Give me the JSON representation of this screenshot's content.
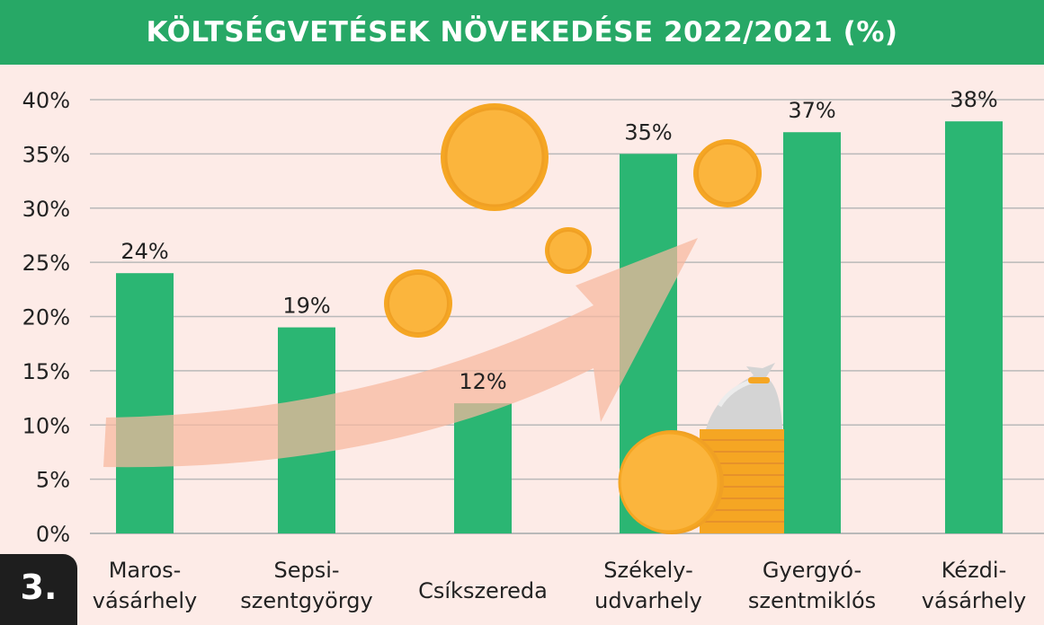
{
  "header": {
    "title": "KÖLTSÉGVETÉSEK NÖVEKEDÉSE 2022/2021 (%)"
  },
  "badge": {
    "label": "3."
  },
  "colors": {
    "background": "#fdebe7",
    "header": "#27a866",
    "bar": "#2bb673",
    "grid": "#b9b9b9",
    "coin": "#fbb53d",
    "arrow": "#f7b79e"
  },
  "decorations": [
    "coin-icon",
    "money-bag-icon",
    "growth-arrow-icon"
  ],
  "chart_data": {
    "type": "bar",
    "title": "KÖLTSÉGVETÉSEK NÖVEKEDÉSE 2022/2021 (%)",
    "categories": [
      [
        "Maros-",
        "vásárhely"
      ],
      [
        "Sepsi-",
        "szentgyörgy"
      ],
      [
        "Csíkszereda"
      ],
      [
        "Székely-",
        "udvarhely"
      ],
      [
        "Gyergyó-",
        "szentmiklós"
      ],
      [
        "Kézdi-",
        "vásárhely"
      ]
    ],
    "values": [
      24,
      19,
      12,
      35,
      37,
      38
    ],
    "value_labels": [
      "24%",
      "19%",
      "12%",
      "35%",
      "37%",
      "38%"
    ],
    "ylim": [
      0,
      40
    ],
    "yticks": [
      0,
      5,
      10,
      15,
      20,
      25,
      30,
      35,
      40
    ],
    "ytick_labels": [
      "0%",
      "5%",
      "10%",
      "15%",
      "20%",
      "25%",
      "30%",
      "35%",
      "40%"
    ],
    "grid": true,
    "legend": "none"
  }
}
